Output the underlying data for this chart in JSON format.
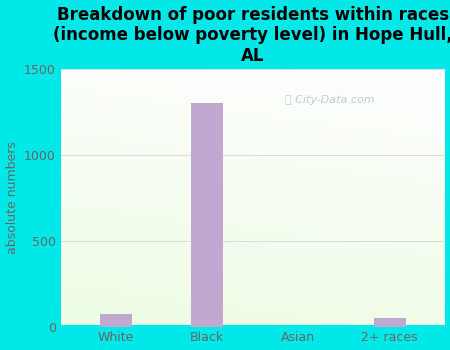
{
  "categories": [
    "White",
    "Black",
    "Asian",
    "2+ races"
  ],
  "values": [
    75,
    1305,
    0,
    50
  ],
  "bar_color": "#c0a8d0",
  "title": "Breakdown of poor residents within races\n(income below poverty level) in Hope Hull,\nAL",
  "ylabel": "absolute numbers",
  "ylim": [
    0,
    1500
  ],
  "yticks": [
    0,
    500,
    1000,
    1500
  ],
  "background_outer": "#00e8e8",
  "watermark": "City-Data.com",
  "title_fontsize": 12,
  "ylabel_fontsize": 9,
  "tick_fontsize": 9,
  "grid_color": "#dddddd",
  "tick_color": "#666666"
}
